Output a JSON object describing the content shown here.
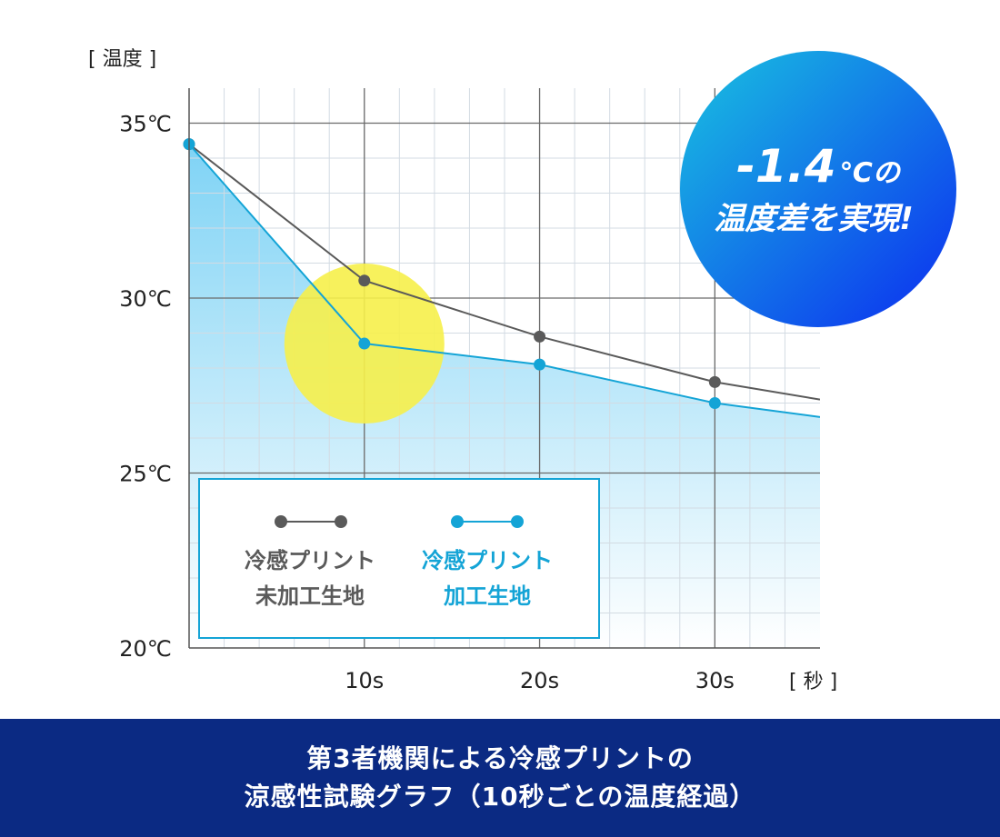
{
  "chart_data": {
    "type": "line",
    "y_unit_label": "[ 温度 ]",
    "x_unit_label": "[ 秒 ]",
    "y_ticks": [
      "35℃",
      "30℃",
      "25℃",
      "20℃"
    ],
    "y_tick_values": [
      35,
      30,
      25,
      20
    ],
    "x_ticks": [
      "10s",
      "20s",
      "30s"
    ],
    "x_tick_values": [
      10,
      20,
      30
    ],
    "xlim": [
      0,
      36
    ],
    "ylim": [
      20,
      36
    ],
    "grid": true,
    "series": [
      {
        "name_line1": "冷感プリント",
        "name_line2": "未加工生地",
        "color": "#5a5a5a",
        "x": [
          0,
          10,
          20,
          30,
          36
        ],
        "y": [
          34.4,
          30.5,
          28.9,
          27.6,
          27.1
        ],
        "markers_at": [
          0,
          10,
          20,
          30
        ]
      },
      {
        "name_line1": "冷感プリント",
        "name_line2": "加工生地",
        "color": "#14a4d6",
        "x": [
          0,
          10,
          20,
          30,
          36
        ],
        "y": [
          34.4,
          28.7,
          28.1,
          27.0,
          26.6
        ],
        "markers_at": [
          0,
          10,
          20,
          30
        ]
      }
    ],
    "legend_position": "bottom-left",
    "highlight_color": "#f6f04a",
    "badge": {
      "value": "-1.4",
      "unit": "℃の",
      "line2": "温度差を実現!",
      "color_start": "#19c3e0",
      "color_end": "#0c2cf0"
    }
  },
  "footer": {
    "line1": "第3者機関による冷感プリントの",
    "line2": "涼感性試験グラフ（10秒ごとの温度経過）"
  }
}
